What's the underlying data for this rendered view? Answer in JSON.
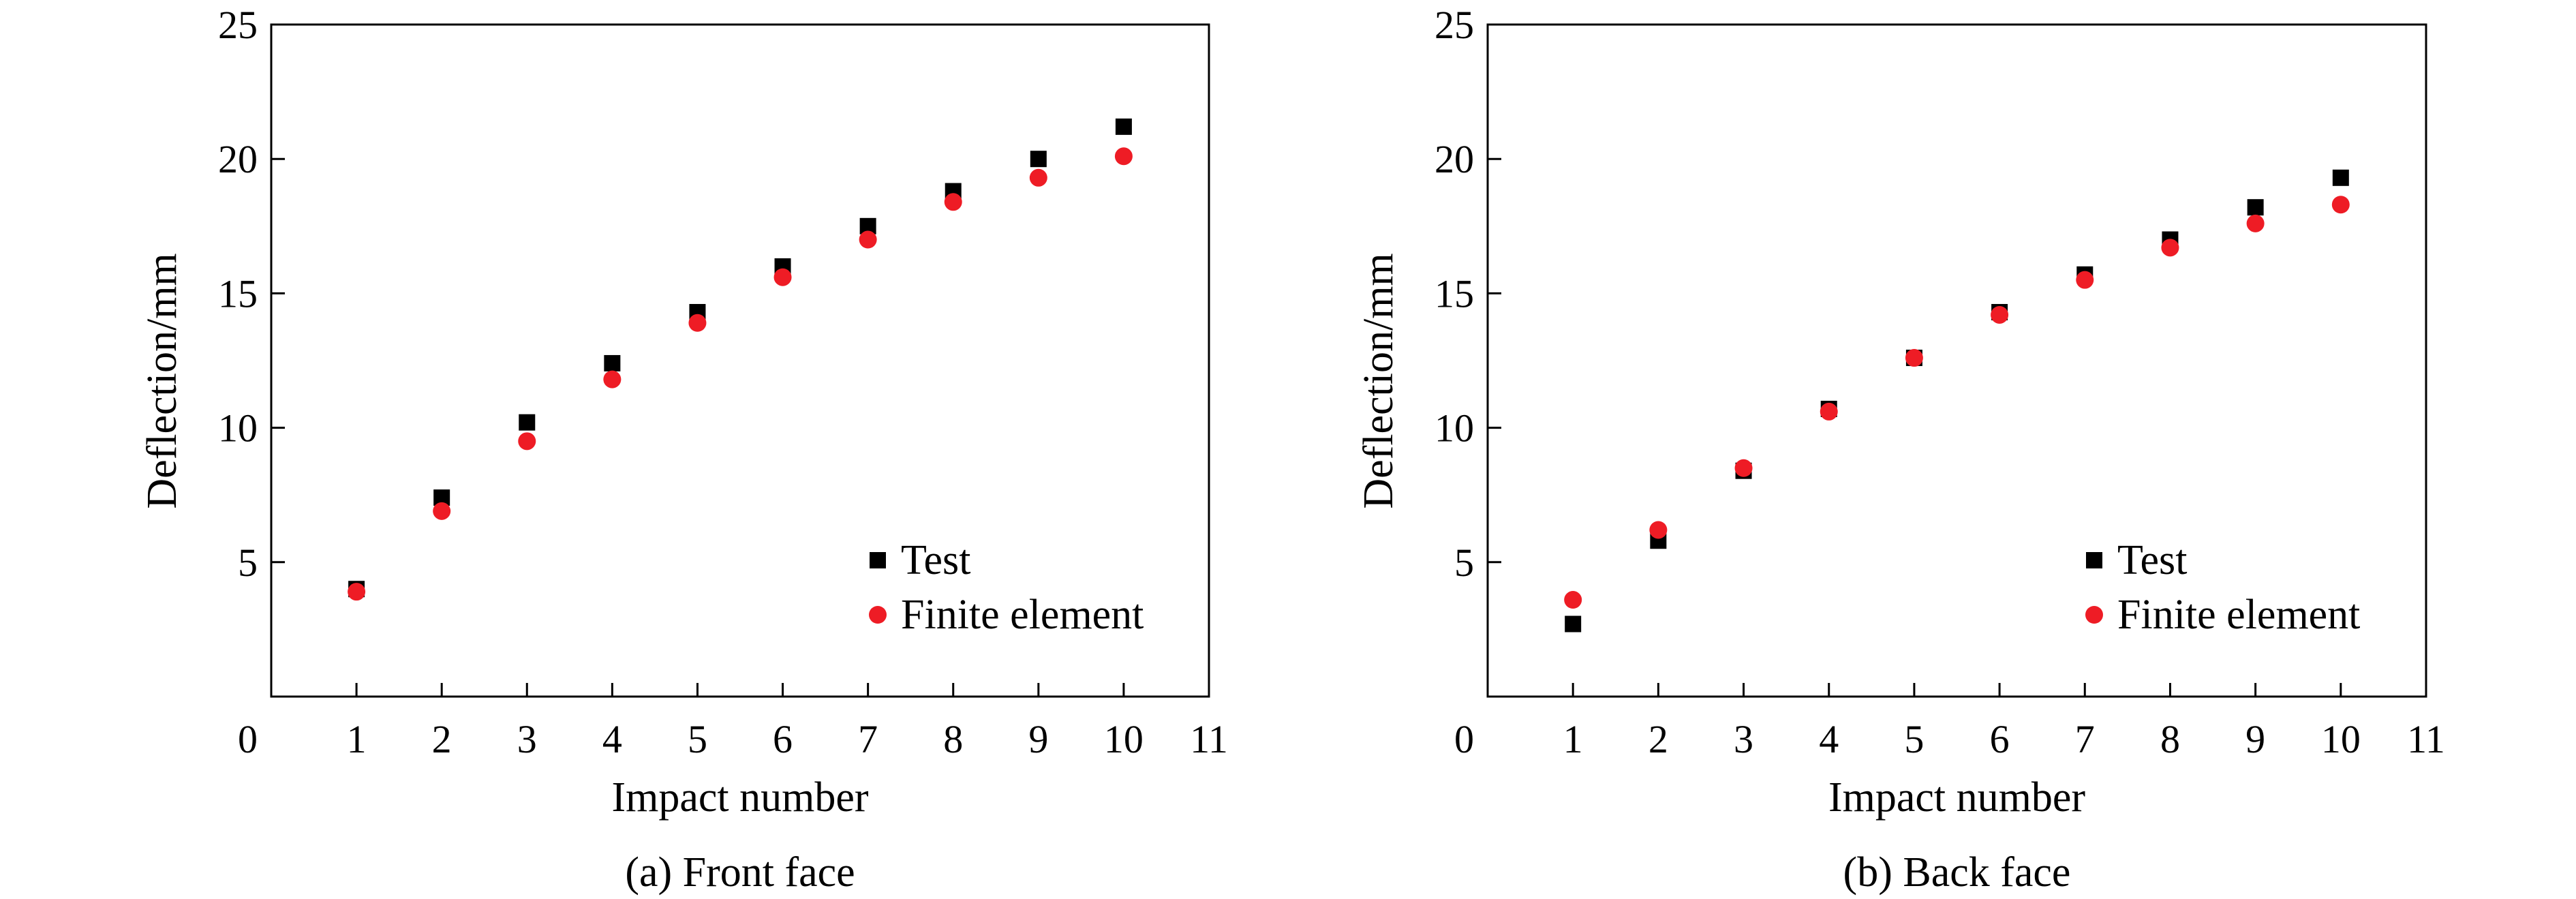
{
  "chart_data": [
    {
      "type": "scatter",
      "caption": "(a) Front face",
      "xlabel": "Impact number",
      "ylabel": "Deflection/mm",
      "xlim": [
        0,
        11
      ],
      "ylim": [
        0,
        25
      ],
      "xticks": [
        "0",
        "1",
        "2",
        "3",
        "4",
        "5",
        "6",
        "7",
        "8",
        "9",
        "10",
        "11"
      ],
      "yticks": [
        "5",
        "10",
        "15",
        "20",
        "25"
      ],
      "legend_position": "bottom-right",
      "grid": false,
      "series": [
        {
          "name": "Test",
          "marker": "square",
          "color": "#000000",
          "x": [
            1,
            2,
            3,
            4,
            5,
            6,
            7,
            8,
            9,
            10
          ],
          "values": [
            4.0,
            7.4,
            10.2,
            12.4,
            14.3,
            16.0,
            17.5,
            18.8,
            20.0,
            21.2
          ]
        },
        {
          "name": "Finite element",
          "marker": "circle",
          "color": "#ee1c25",
          "x": [
            1,
            2,
            3,
            4,
            5,
            6,
            7,
            8,
            9,
            10
          ],
          "values": [
            3.9,
            6.9,
            9.5,
            11.8,
            13.9,
            15.6,
            17.0,
            18.4,
            19.3,
            20.1
          ]
        }
      ]
    },
    {
      "type": "scatter",
      "caption": "(b) Back face",
      "xlabel": "Impact number",
      "ylabel": "Deflection/mm",
      "xlim": [
        0,
        11
      ],
      "ylim": [
        0,
        25
      ],
      "xticks": [
        "0",
        "1",
        "2",
        "3",
        "4",
        "5",
        "6",
        "7",
        "8",
        "9",
        "10",
        "11"
      ],
      "yticks": [
        "5",
        "10",
        "15",
        "20",
        "25"
      ],
      "legend_position": "bottom-right",
      "grid": false,
      "series": [
        {
          "name": "Test",
          "marker": "square",
          "color": "#000000",
          "x": [
            1,
            2,
            3,
            4,
            5,
            6,
            7,
            8,
            9,
            10
          ],
          "values": [
            2.7,
            5.8,
            8.4,
            10.7,
            12.6,
            14.3,
            15.7,
            17.0,
            18.2,
            19.3
          ]
        },
        {
          "name": "Finite element",
          "marker": "circle",
          "color": "#ee1c25",
          "x": [
            1,
            2,
            3,
            4,
            5,
            6,
            7,
            8,
            9,
            10
          ],
          "values": [
            3.6,
            6.2,
            8.5,
            10.6,
            12.6,
            14.2,
            15.5,
            16.7,
            17.6,
            18.3
          ]
        }
      ]
    }
  ]
}
